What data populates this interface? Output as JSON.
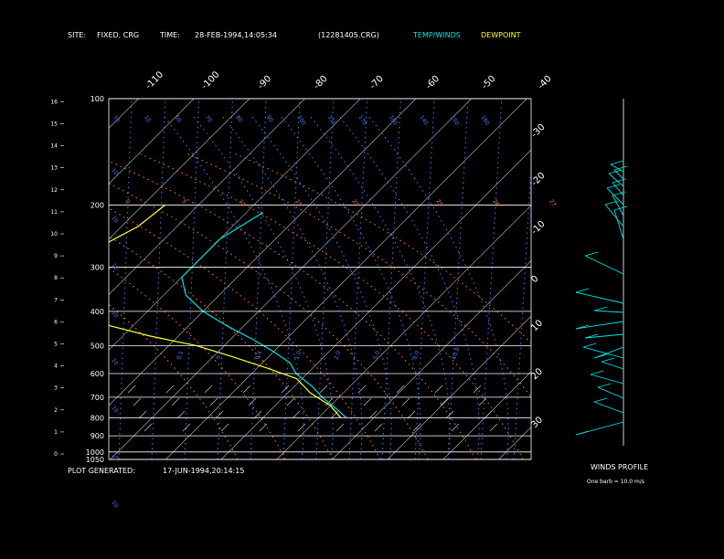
{
  "header": {
    "site_label": "SITE:",
    "site_value": "FIXED, CRG",
    "time_label": "TIME:",
    "time_value": "28-FEB-1994,14:05:34",
    "file_id": "(12281405.CRG)",
    "legend_temp": "TEMP/WINDS",
    "legend_dew": "DEWPOINT"
  },
  "footer": {
    "generated_label": "PLOT GENERATED:",
    "generated_value": "17-JUN-1994,20:14:15"
  },
  "winds_panel": {
    "title": "WINDS PROFILE",
    "note": "One barb = 10.0 m/s"
  },
  "colors": {
    "background": "#000000",
    "temp": "#00e5e5",
    "dewpoint": "#ffff33",
    "mixing_ratio": "#4d7fff",
    "dry_adiabat": "#ff7a4d",
    "moist_adiabat": "#4d7fff",
    "isotherm": "#bfbfbf",
    "isobar": "#ffffff",
    "frame": "#ffffff"
  },
  "chart_data": {
    "type": "line",
    "pressure_levels_hpa": [
      "100",
      "200",
      "300",
      "400",
      "500",
      "600",
      "700",
      "800",
      "900",
      "1000",
      "1050"
    ],
    "height_ticks_km": [
      "0",
      "1",
      "2",
      "3",
      "4",
      "5",
      "6",
      "7",
      "8",
      "9",
      "10",
      "11",
      "12",
      "13",
      "14",
      "15",
      "16"
    ],
    "isotherm_labels_top": [
      "-110",
      "-100",
      "-90",
      "-80",
      "-70",
      "-60",
      "-50",
      "-40"
    ],
    "isotherm_labels_right": [
      "-30",
      "-20",
      "-10",
      "0",
      "10",
      "20",
      "30"
    ],
    "mixing_ratio_labels_top": [
      "10",
      "10",
      "50",
      "70",
      "80",
      "90",
      "100",
      "110",
      "170",
      "180",
      "140",
      "150",
      "160"
    ],
    "dry_adiabat_labels": [
      "0",
      "5",
      "10",
      "15",
      "20",
      "25",
      "26",
      "27"
    ],
    "moist_adiabat_labels": [
      "0.1",
      "0.2",
      "0.4",
      "1.0",
      "2.0",
      "5.0",
      "8.0",
      "10.0"
    ],
    "left_isopleth_labels": [
      "10",
      "10",
      "10",
      "10",
      "10",
      "10",
      "10",
      "10"
    ],
    "temperature_profile": [
      {
        "p": 210,
        "t": -47
      },
      {
        "p": 250,
        "t": -50
      },
      {
        "p": 280,
        "t": -50
      },
      {
        "p": 320,
        "t": -50
      },
      {
        "p": 360,
        "t": -46
      },
      {
        "p": 400,
        "t": -40
      },
      {
        "p": 440,
        "t": -33
      },
      {
        "p": 480,
        "t": -26
      },
      {
        "p": 520,
        "t": -20
      },
      {
        "p": 560,
        "t": -15
      },
      {
        "p": 600,
        "t": -12
      },
      {
        "p": 650,
        "t": -7
      },
      {
        "p": 700,
        "t": -3
      },
      {
        "p": 760,
        "t": 2
      },
      {
        "p": 800,
        "t": 5
      }
    ],
    "dewpoint_profile": [
      {
        "p": 200,
        "td": -66
      },
      {
        "p": 230,
        "td": -67
      },
      {
        "p": 260,
        "td": -70
      },
      {
        "p": 300,
        "td": -72
      },
      {
        "p": 350,
        "td": -70
      },
      {
        "p": 400,
        "td": -65
      },
      {
        "p": 440,
        "td": -54
      },
      {
        "p": 470,
        "td": -45
      },
      {
        "p": 500,
        "td": -35
      },
      {
        "p": 540,
        "td": -26
      },
      {
        "p": 580,
        "td": -18
      },
      {
        "p": 620,
        "td": -11
      },
      {
        "p": 680,
        "td": -6
      },
      {
        "p": 740,
        "td": 0
      },
      {
        "p": 800,
        "td": 4
      }
    ]
  }
}
